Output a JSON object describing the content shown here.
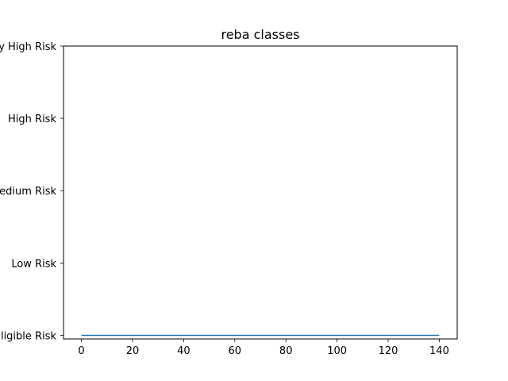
{
  "chart_data": {
    "type": "line",
    "title": "reba classes",
    "xlabel": "",
    "ylabel": "",
    "xlim": [
      -7,
      147
    ],
    "ylim": [
      -0.05,
      4
    ],
    "x_ticks": [
      0,
      20,
      40,
      60,
      80,
      100,
      120,
      140
    ],
    "y_ticks": [
      {
        "value": 0,
        "label": "Negligible Risk"
      },
      {
        "value": 1,
        "label": "Low Risk"
      },
      {
        "value": 2,
        "label": "Medium Risk"
      },
      {
        "value": 3,
        "label": "High Risk"
      },
      {
        "value": 4,
        "label": "Very High Risk"
      }
    ],
    "series": [
      {
        "color": "#1f77b4",
        "x": [
          0,
          140
        ],
        "y": [
          0,
          0
        ]
      }
    ],
    "grid": false,
    "legend": "none"
  }
}
